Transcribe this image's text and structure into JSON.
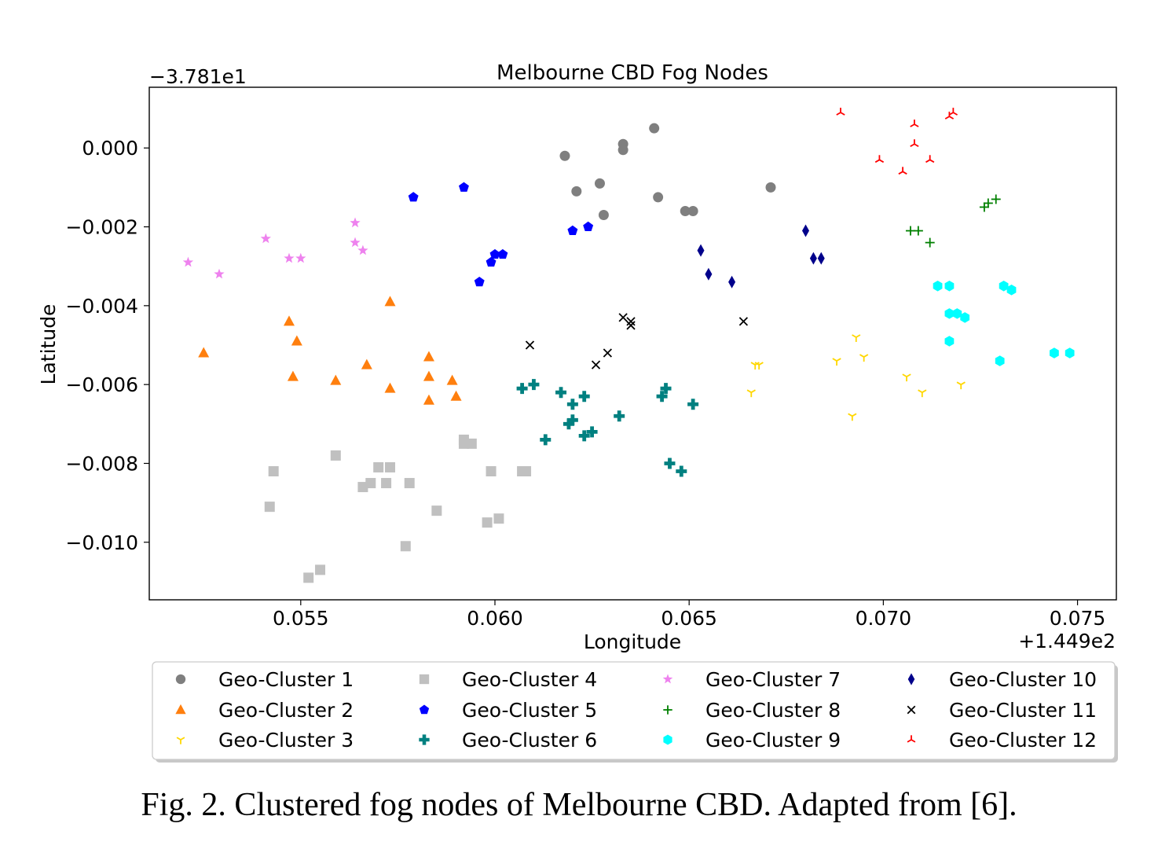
{
  "caption": "Fig. 2.  Clustered fog nodes of Melbourne CBD. Adapted from [6].",
  "chart_data": {
    "type": "scatter",
    "title": "Melbourne CBD Fog Nodes",
    "xlabel": "Longitude",
    "ylabel": "Latitude",
    "x_offset_label": "+1.449e2",
    "y_offset_label": "−3.781e1",
    "xlim": [
      0.0511,
      0.076
    ],
    "ylim": [
      -0.01146,
      0.00154
    ],
    "xticks": [
      {
        "value": 0.055,
        "label": "0.055"
      },
      {
        "value": 0.06,
        "label": "0.060"
      },
      {
        "value": 0.065,
        "label": "0.065"
      },
      {
        "value": 0.07,
        "label": "0.070"
      },
      {
        "value": 0.075,
        "label": "0.075"
      }
    ],
    "yticks": [
      {
        "value": 0.0,
        "label": "0.000"
      },
      {
        "value": -0.002,
        "label": "−0.002"
      },
      {
        "value": -0.004,
        "label": "−0.004"
      },
      {
        "value": -0.006,
        "label": "−0.006"
      },
      {
        "value": -0.008,
        "label": "−0.008"
      },
      {
        "value": -0.01,
        "label": "−0.010"
      }
    ],
    "grid": false,
    "legend_position": "bottom-outside",
    "series": [
      {
        "name": "Geo-Cluster 1",
        "marker": "circle",
        "color": "#7f7f7f",
        "points": [
          [
            0.0618,
            -0.0002
          ],
          [
            0.0633,
            0.0001
          ],
          [
            0.0633,
            -5e-05
          ],
          [
            0.0641,
            0.0005
          ],
          [
            0.0621,
            -0.0011
          ],
          [
            0.0627,
            -0.0009
          ],
          [
            0.0628,
            -0.0017
          ],
          [
            0.0642,
            -0.00125
          ],
          [
            0.0649,
            -0.0016
          ],
          [
            0.0651,
            -0.0016
          ],
          [
            0.0671,
            -0.001
          ]
        ]
      },
      {
        "name": "Geo-Cluster 2",
        "marker": "triangle",
        "color": "#ff7f0e",
        "points": [
          [
            0.0525,
            -0.0052
          ],
          [
            0.0547,
            -0.0044
          ],
          [
            0.0549,
            -0.0049
          ],
          [
            0.0548,
            -0.0058
          ],
          [
            0.0559,
            -0.0059
          ],
          [
            0.0567,
            -0.0055
          ],
          [
            0.0573,
            -0.0039
          ],
          [
            0.0573,
            -0.0061
          ],
          [
            0.0583,
            -0.0053
          ],
          [
            0.0583,
            -0.0058
          ],
          [
            0.0583,
            -0.0064
          ],
          [
            0.0589,
            -0.0059
          ],
          [
            0.059,
            -0.0063
          ]
        ]
      },
      {
        "name": "Geo-Cluster 3",
        "marker": "tri_down",
        "color": "#ffd700",
        "points": [
          [
            0.0666,
            -0.0062
          ],
          [
            0.0667,
            -0.0055
          ],
          [
            0.0668,
            -0.0055
          ],
          [
            0.0688,
            -0.0054
          ],
          [
            0.0692,
            -0.0068
          ],
          [
            0.0693,
            -0.0048
          ],
          [
            0.0695,
            -0.0053
          ],
          [
            0.0706,
            -0.0058
          ],
          [
            0.071,
            -0.0062
          ],
          [
            0.072,
            -0.006
          ]
        ]
      },
      {
        "name": "Geo-Cluster 4",
        "marker": "square",
        "color": "#c0c0c0",
        "points": [
          [
            0.0542,
            -0.0091
          ],
          [
            0.0543,
            -0.0082
          ],
          [
            0.0552,
            -0.0109
          ],
          [
            0.0555,
            -0.0107
          ],
          [
            0.0559,
            -0.0078
          ],
          [
            0.0566,
            -0.0086
          ],
          [
            0.0568,
            -0.0085
          ],
          [
            0.057,
            -0.0081
          ],
          [
            0.0572,
            -0.0085
          ],
          [
            0.0573,
            -0.0081
          ],
          [
            0.0577,
            -0.0101
          ],
          [
            0.0578,
            -0.0085
          ],
          [
            0.0585,
            -0.0092
          ],
          [
            0.0592,
            -0.0074
          ],
          [
            0.0592,
            -0.0075
          ],
          [
            0.0594,
            -0.0075
          ],
          [
            0.0598,
            -0.0095
          ],
          [
            0.0599,
            -0.0082
          ],
          [
            0.0601,
            -0.0094
          ],
          [
            0.0607,
            -0.0082
          ],
          [
            0.0608,
            -0.0082
          ]
        ]
      },
      {
        "name": "Geo-Cluster 5",
        "marker": "pentagon",
        "color": "#0000ff",
        "points": [
          [
            0.0579,
            -0.00125
          ],
          [
            0.0592,
            -0.001
          ],
          [
            0.0596,
            -0.0034
          ],
          [
            0.0599,
            -0.0029
          ],
          [
            0.06,
            -0.0027
          ],
          [
            0.0602,
            -0.0027
          ],
          [
            0.062,
            -0.0021
          ],
          [
            0.0624,
            -0.002
          ]
        ]
      },
      {
        "name": "Geo-Cluster 6",
        "marker": "plus_filled",
        "color": "#008080",
        "points": [
          [
            0.0607,
            -0.0061
          ],
          [
            0.061,
            -0.006
          ],
          [
            0.0613,
            -0.0074
          ],
          [
            0.0617,
            -0.0062
          ],
          [
            0.0619,
            -0.007
          ],
          [
            0.062,
            -0.0069
          ],
          [
            0.062,
            -0.0065
          ],
          [
            0.0623,
            -0.0063
          ],
          [
            0.0623,
            -0.0073
          ],
          [
            0.0625,
            -0.0072
          ],
          [
            0.0632,
            -0.0068
          ],
          [
            0.0643,
            -0.0063
          ],
          [
            0.0644,
            -0.0061
          ],
          [
            0.0645,
            -0.008
          ],
          [
            0.0648,
            -0.0082
          ],
          [
            0.0651,
            -0.0065
          ]
        ]
      },
      {
        "name": "Geo-Cluster 7",
        "marker": "star",
        "color": "#ee82ee",
        "points": [
          [
            0.0521,
            -0.0029
          ],
          [
            0.0529,
            -0.0032
          ],
          [
            0.0541,
            -0.0023
          ],
          [
            0.0547,
            -0.0028
          ],
          [
            0.055,
            -0.0028
          ],
          [
            0.0564,
            -0.0019
          ],
          [
            0.0564,
            -0.0024
          ],
          [
            0.0566,
            -0.0026
          ]
        ]
      },
      {
        "name": "Geo-Cluster 8",
        "marker": "plus",
        "color": "#008000",
        "points": [
          [
            0.0707,
            -0.0021
          ],
          [
            0.0709,
            -0.0021
          ],
          [
            0.0712,
            -0.0024
          ],
          [
            0.0726,
            -0.0015
          ],
          [
            0.0727,
            -0.0014
          ],
          [
            0.0729,
            -0.0013
          ]
        ]
      },
      {
        "name": "Geo-Cluster 9",
        "marker": "hexagon",
        "color": "#00ffff",
        "points": [
          [
            0.0714,
            -0.0035
          ],
          [
            0.0717,
            -0.0035
          ],
          [
            0.0717,
            -0.0042
          ],
          [
            0.0717,
            -0.0049
          ],
          [
            0.0719,
            -0.0042
          ],
          [
            0.0721,
            -0.0043
          ],
          [
            0.073,
            -0.0054
          ],
          [
            0.0731,
            -0.0035
          ],
          [
            0.0733,
            -0.0036
          ],
          [
            0.0744,
            -0.0052
          ],
          [
            0.0748,
            -0.0052
          ]
        ]
      },
      {
        "name": "Geo-Cluster 10",
        "marker": "diamond_thin",
        "color": "#00008b",
        "points": [
          [
            0.0653,
            -0.0026
          ],
          [
            0.0655,
            -0.0032
          ],
          [
            0.0661,
            -0.0034
          ],
          [
            0.068,
            -0.0021
          ],
          [
            0.0682,
            -0.0028
          ],
          [
            0.0684,
            -0.0028
          ]
        ]
      },
      {
        "name": "Geo-Cluster 11",
        "marker": "x",
        "color": "#000000",
        "points": [
          [
            0.0609,
            -0.005
          ],
          [
            0.0626,
            -0.0055
          ],
          [
            0.0629,
            -0.0052
          ],
          [
            0.0633,
            -0.0043
          ],
          [
            0.0635,
            -0.0044
          ],
          [
            0.0635,
            -0.0045
          ],
          [
            0.0664,
            -0.0044
          ]
        ]
      },
      {
        "name": "Geo-Cluster 12",
        "marker": "tri_up",
        "color": "#ff0000",
        "points": [
          [
            0.0689,
            0.0009
          ],
          [
            0.0699,
            -0.0003
          ],
          [
            0.0705,
            -0.0006
          ],
          [
            0.0708,
            0.0006
          ],
          [
            0.0708,
            0.0001
          ],
          [
            0.0712,
            -0.0003
          ],
          [
            0.0717,
            0.0008
          ],
          [
            0.0718,
            0.0009
          ]
        ]
      }
    ]
  }
}
